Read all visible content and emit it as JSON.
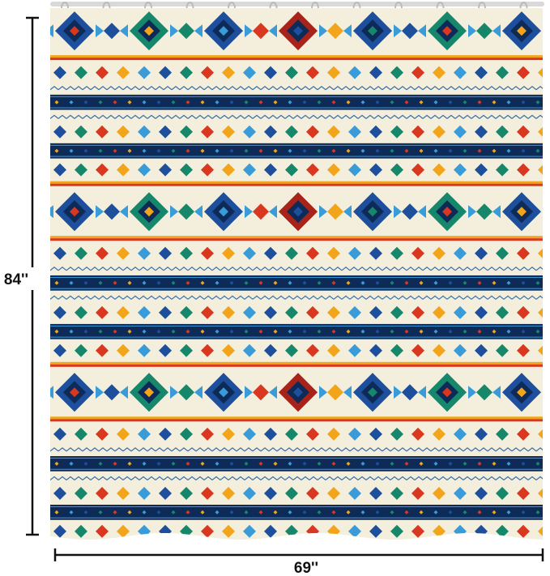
{
  "height_label": "84''",
  "width_label": "69''"
}
